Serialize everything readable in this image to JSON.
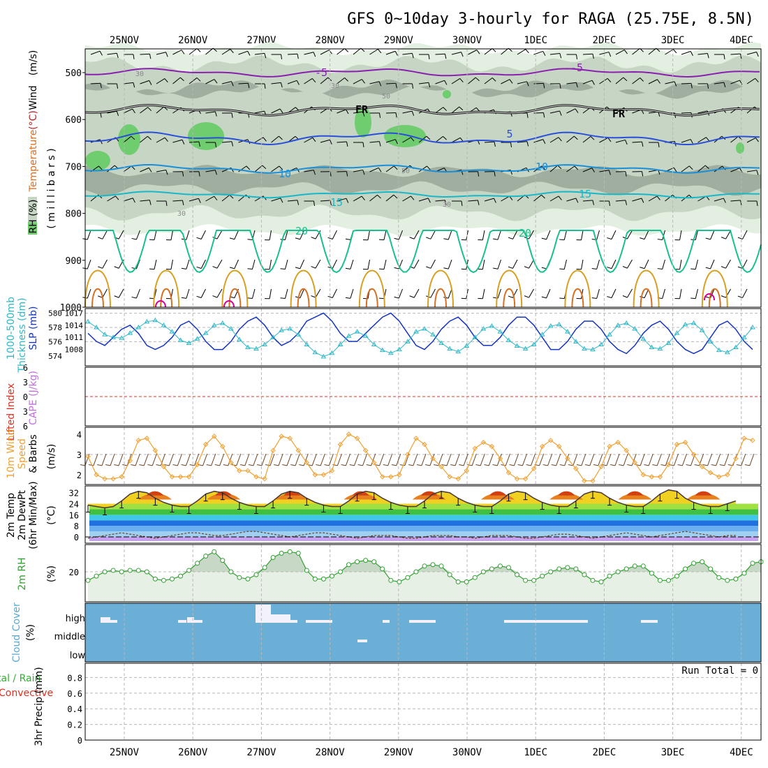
{
  "title": "GFS 0~10day 3-hourly for RAGA (25.75E, 8.5N)",
  "dates": [
    "25NOV",
    "26NOV",
    "27NOV",
    "28NOV",
    "29NOV",
    "30NOV",
    "1DEC",
    "2DEC",
    "3DEC",
    "4DEC"
  ],
  "colors": {
    "rh_light": "#e3efe0",
    "rh_mid": "#c6d5c4",
    "rh_dark": "#9fae9e",
    "rh_wet": "#6fcc6f",
    "t_minus5": "#8a1fb0",
    "t_zero": "#000000",
    "t_5": "#2a4fd8",
    "t_10": "#1a8fd8",
    "t_15": "#18b8c8",
    "t_20": "#18c090",
    "t_25": "#d8a020",
    "t_30": "#d87020",
    "t_35": "#d00090",
    "slp": "#1535c0",
    "thickness": "#30b8c8",
    "lifted": "#e03020",
    "cape": "#c070e0",
    "wind10m": "#f0a030",
    "rh2m": "#30a030",
    "cloud": "#6baed6",
    "grid": "#b8b8b8"
  },
  "labels": {
    "wind": "Wind",
    "wind_unit": "(m/s)",
    "temperature": "Temperature",
    "temp_unit": "(°C)",
    "rh": "RH (%)",
    "millibars": "( m i l l i b a r s )",
    "thickness": "1000-500mb",
    "thickness2": "Thickness (dm)",
    "slp": "SLP (mb)",
    "lifted": "Lifted Index",
    "cape": "CAPE (J/kg)",
    "wind10m": "10m Wind",
    "wind10m_b": "Speed",
    "wind10m_c": "& Barbs",
    "wind10m_unit": "(m/s)",
    "temp2m": "2m Temp",
    "dewpt2m": "2m DewPt",
    "minmax": "(6hr Min/Max)",
    "temp2m_unit": "(°C)",
    "rh2m": "2m RH",
    "rh2m_unit": "(%)",
    "cloud": "Cloud Cover",
    "cloud_unit": "(%)",
    "cloud_high": "high",
    "cloud_middle": "middle",
    "cloud_low": "low",
    "precip_a": "tal / Rain",
    "precip_b": "Convective",
    "precip_c": "3hr Precip (mm)",
    "run_total": "Run Total = 0",
    "fr": "FR"
  },
  "chart_data": [
    {
      "type": "area",
      "title": "GFS 0~10day 3-hourly for RAGA (25.75E, 8.5N)",
      "panel": "pressure-level cross-section",
      "ylabel": "millibars",
      "y_ticks": [
        500,
        600,
        700,
        800,
        900,
        1000
      ],
      "ylim": [
        1000,
        450
      ],
      "contour_labels": [
        "-5",
        "FR",
        "5",
        "10",
        "15",
        "20",
        "30",
        "50"
      ],
      "isotherms": [
        {
          "name": "-5",
          "level_mb": 500
        },
        {
          "name": "0",
          "level_mb": 580
        },
        {
          "name": "5",
          "level_mb": 640
        },
        {
          "name": "10",
          "level_mb": 705
        },
        {
          "name": "15",
          "level_mb": 760
        },
        {
          "name": "20",
          "level_mb": 840
        }
      ]
    },
    {
      "type": "line",
      "panel": "thickness and sea-level pressure",
      "y_left_ticks": [
        574,
        576,
        578,
        580
      ],
      "y_right_ticks": [
        1008,
        1011,
        1014,
        1017
      ],
      "series": [
        {
          "name": "SLP (mb)",
          "values": [
            1012,
            1010,
            1009,
            1011,
            1013,
            1014,
            1012,
            1009,
            1008,
            1009,
            1011,
            1014,
            1015,
            1013,
            1010,
            1008,
            1008,
            1010,
            1013,
            1015,
            1016,
            1014,
            1011,
            1009,
            1010,
            1012,
            1015,
            1016,
            1017,
            1015,
            1012,
            1010,
            1010,
            1012,
            1014,
            1016,
            1017,
            1015,
            1012,
            1009,
            1008,
            1010,
            1013,
            1015,
            1016,
            1014,
            1011,
            1009,
            1009,
            1011,
            1014,
            1016,
            1016,
            1014,
            1011,
            1008,
            1008,
            1010,
            1013,
            1015,
            1015,
            1013,
            1010,
            1008,
            1007,
            1009,
            1012,
            1014,
            1015,
            1013,
            1010,
            1008,
            1007,
            1008,
            1011,
            1014,
            1015,
            1013,
            1010,
            1008
          ]
        },
        {
          "name": "1000-500mb Thickness (dm)",
          "values": [
            578.8,
            578.0,
            577.0,
            576.6,
            576.5,
            577.2,
            578.0,
            578.8,
            579.0,
            578.3,
            577.4,
            576.2,
            575.8,
            576.4,
            577.2,
            578.3,
            578.6,
            577.8,
            576.3,
            575.2,
            575.0,
            575.6,
            576.6,
            577.6,
            577.8,
            577.0,
            575.6,
            574.5,
            573.9,
            574.4,
            575.6,
            576.8,
            577.4,
            576.8,
            575.6,
            574.8,
            574.4,
            574.9,
            576.0,
            577.4,
            577.8,
            577.0,
            575.8,
            575.0,
            574.6,
            575.4,
            576.6,
            577.8,
            578.2,
            577.4,
            576.2,
            575.4,
            575.0,
            575.6,
            577.0,
            578.2,
            578.4,
            577.4,
            576.0,
            575.0,
            574.9,
            575.6,
            577.0,
            578.3,
            578.6,
            577.8,
            576.4,
            575.2,
            575.0,
            575.8,
            577.2,
            578.4,
            578.6,
            577.6,
            576.0,
            574.8,
            574.5,
            575.2,
            576.6,
            578.0
          ]
        }
      ]
    },
    {
      "type": "line",
      "panel": "lifted index and CAPE",
      "y_ticks": [
        -6,
        -3,
        0,
        3,
        6
      ],
      "series": [
        {
          "name": "Lifted Index",
          "values": []
        },
        {
          "name": "CAPE (J/kg)",
          "values": []
        }
      ]
    },
    {
      "type": "line",
      "panel": "10m wind speed and barbs",
      "ylabel": "(m/s)",
      "y_ticks": [
        2,
        3,
        4
      ],
      "ylim": [
        1.6,
        4.1
      ],
      "series": [
        {
          "name": "10m Wind Speed",
          "values": [
            2.9,
            2.0,
            1.8,
            1.8,
            1.9,
            2.7,
            3.7,
            3.8,
            3.2,
            2.4,
            1.9,
            1.9,
            1.9,
            2.5,
            3.5,
            3.9,
            3.4,
            2.6,
            2.2,
            2.2,
            1.9,
            1.8,
            3.2,
            3.9,
            3.8,
            3.2,
            2.6,
            2.0,
            2.0,
            2.2,
            3.5,
            4.0,
            3.8,
            3.2,
            2.6,
            1.9,
            1.9,
            2.0,
            3.0,
            3.8,
            3.5,
            2.8,
            2.4,
            1.9,
            1.8,
            2.2,
            3.3,
            3.6,
            3.4,
            2.8,
            2.1,
            1.8,
            1.8,
            2.3,
            3.4,
            3.7,
            3.4,
            2.8,
            2.3,
            1.7,
            1.7,
            2.4,
            3.4,
            3.6,
            3.2,
            2.6,
            2.0,
            1.9,
            1.9,
            2.5,
            3.5,
            3.6,
            3.0,
            2.4,
            2.1,
            1.9,
            2.0,
            2.8,
            3.8,
            3.7
          ]
        }
      ]
    },
    {
      "type": "area",
      "panel": "2m temperature and dew point",
      "ylabel": "(°C)",
      "y_ticks": [
        0,
        8,
        16,
        24,
        32
      ],
      "ylim": [
        -3,
        36
      ],
      "series": [
        {
          "name": "2m Temp",
          "values": [
            23,
            22,
            21,
            22,
            26,
            31,
            33,
            32,
            28,
            25,
            23,
            22,
            22,
            26,
            31,
            33,
            32,
            28,
            25,
            23,
            22,
            22,
            26,
            31,
            33,
            32,
            28,
            25,
            23,
            22,
            22,
            26,
            31,
            33,
            32,
            28,
            25,
            23,
            22,
            22,
            26,
            31,
            33,
            32,
            28,
            25,
            23,
            22,
            22,
            26,
            31,
            33,
            32,
            28,
            25,
            23,
            22,
            22,
            26,
            31,
            33,
            32,
            28,
            25,
            23,
            22,
            22,
            26,
            31,
            34,
            33,
            28,
            25,
            23,
            22,
            22,
            24,
            26
          ]
        },
        {
          "name": "2m DewPt",
          "values": [
            -1,
            0,
            1,
            2,
            3,
            2,
            1,
            0,
            -1,
            0,
            1,
            2,
            3,
            3,
            2,
            1,
            1,
            2,
            3,
            4,
            4,
            3,
            2,
            1,
            0,
            1,
            2,
            3,
            3,
            2,
            1,
            0,
            -1,
            0,
            1,
            1,
            1,
            0,
            -1,
            -1,
            0,
            1,
            1,
            1,
            0,
            0,
            -1,
            0,
            1,
            1,
            1,
            0,
            -1,
            -1,
            0,
            1,
            2,
            2,
            1,
            0,
            -1,
            0,
            1,
            2,
            3,
            2,
            1,
            0,
            1,
            2,
            3,
            4,
            3,
            2,
            1,
            0,
            1,
            1
          ]
        }
      ]
    },
    {
      "type": "area",
      "panel": "2m relative humidity",
      "ylabel": "(%)",
      "y_ticks": [
        20
      ],
      "ylim": [
        0,
        38
      ],
      "series": [
        {
          "name": "2m RH",
          "values": [
            14,
            17,
            20,
            21,
            20,
            21,
            21,
            20,
            15,
            14,
            15,
            17,
            21,
            26,
            31,
            34,
            28,
            20,
            16,
            15,
            18,
            23,
            30,
            33,
            34,
            33,
            21,
            15,
            15,
            17,
            20,
            25,
            27,
            28,
            27,
            22,
            14,
            13,
            16,
            20,
            24,
            25,
            24,
            18,
            13,
            13,
            16,
            20,
            22,
            24,
            23,
            18,
            14,
            14,
            17,
            20,
            22,
            23,
            22,
            18,
            14,
            13,
            17,
            20,
            22,
            24,
            24,
            19,
            14,
            14,
            17,
            22,
            26,
            27,
            22,
            16,
            14,
            15,
            19,
            26,
            27,
            27,
            20
          ]
        }
      ]
    },
    {
      "type": "heatmap",
      "panel": "cloud cover",
      "ylabel": "(%)",
      "categories": [
        "high",
        "middle",
        "low"
      ]
    },
    {
      "type": "bar",
      "panel": "3hr precipitation",
      "ylabel": "3hr Precip (mm)",
      "y_ticks": [
        0,
        0.2,
        0.4,
        0.6,
        0.8
      ],
      "ylim": [
        0,
        1
      ],
      "run_total": 0,
      "series": [
        {
          "name": "Total / Rain",
          "values": []
        },
        {
          "name": "Convective",
          "values": []
        }
      ]
    }
  ]
}
